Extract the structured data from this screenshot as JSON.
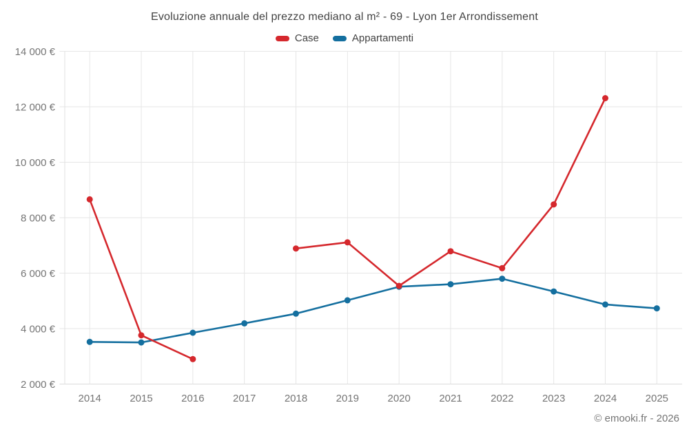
{
  "chart_data": {
    "type": "line",
    "title": "Evoluzione annuale del prezzo mediano al m² - 69 - Lyon 1er Arrondissement",
    "categories": [
      "2014",
      "2015",
      "2016",
      "2017",
      "2018",
      "2019",
      "2020",
      "2021",
      "2022",
      "2023",
      "2024",
      "2025"
    ],
    "series": [
      {
        "name": "Case",
        "color": "#d5282d",
        "values": [
          8660,
          3760,
          2900,
          null,
          6890,
          7110,
          5540,
          6790,
          6180,
          8480,
          12310,
          null
        ]
      },
      {
        "name": "Appartamenti",
        "color": "#146f9f",
        "values": [
          3520,
          3500,
          3850,
          4190,
          4540,
          5020,
          5510,
          5600,
          5800,
          5340,
          4870,
          4730
        ]
      }
    ],
    "yticks": [
      2000,
      4000,
      6000,
      8000,
      10000,
      12000,
      14000
    ],
    "ytick_suffix": "€",
    "ylim": [
      2000,
      14000
    ],
    "xlabel": "",
    "ylabel": "",
    "grid": true,
    "legend_position": "top"
  },
  "footer": {
    "text": "© emooki.fr - 2026"
  },
  "colors": {
    "grid": "#e6e6e6",
    "axis": "#d9d9d9",
    "axis_text": "#757575",
    "title_text": "#424242"
  }
}
